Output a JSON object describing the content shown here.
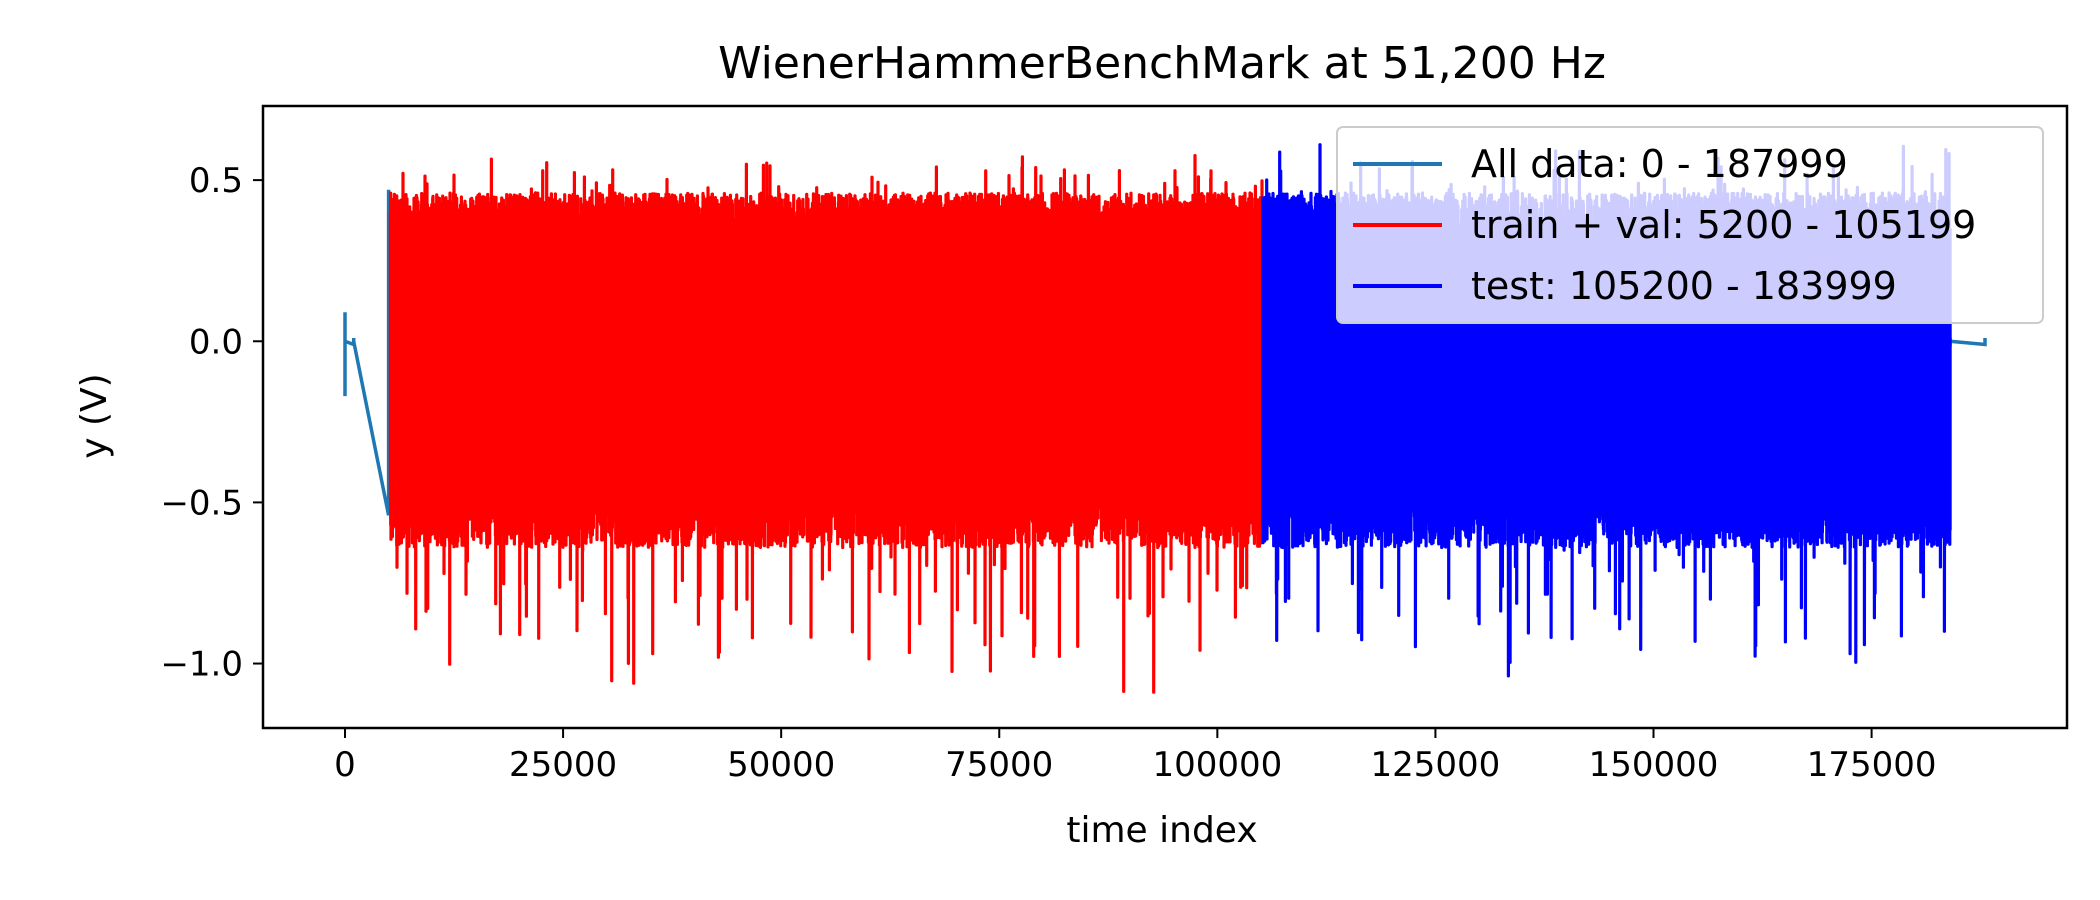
{
  "chart_data": {
    "type": "line",
    "title": "WienerHammerBenchMark at 51,200 Hz",
    "xlabel": "time index",
    "ylabel": "y (V)",
    "xlim": [
      -9400,
      197400
    ],
    "ylim": [
      -1.2,
      0.73
    ],
    "xticks": [
      0,
      25000,
      50000,
      75000,
      100000,
      125000,
      150000,
      175000
    ],
    "xtick_labels": [
      "0",
      "25000",
      "50000",
      "75000",
      "100000",
      "125000",
      "150000",
      "175000"
    ],
    "yticks": [
      0.5,
      0.0,
      -0.5,
      -1.0
    ],
    "ytick_labels": [
      "0.5",
      "0.0",
      "−0.5",
      "−1.0"
    ],
    "grid": false,
    "legend_position": "top-right",
    "series": [
      {
        "name": "All data: 0 - 187999",
        "color": "#1f77b4",
        "x_range": [
          0,
          187999
        ],
        "envelope": [
          {
            "x": 0,
            "min": -0.17,
            "max": 0.09
          },
          {
            "x": 1000,
            "min": -0.01,
            "max": 0.01
          },
          {
            "x": 5000,
            "min": -0.54,
            "max": 0.47
          },
          {
            "x": 183999,
            "min": -0.01,
            "max": 0.01
          },
          {
            "x": 187999,
            "min": -0.01,
            "max": 0.01
          }
        ]
      },
      {
        "name": "train + val: 5200 - 105199",
        "color": "#ff0000",
        "x_range": [
          5200,
          105199
        ],
        "y_min": -1.12,
        "y_max": 0.6
      },
      {
        "name": "test: 105200 - 183999",
        "color": "#0000ff",
        "x_range": [
          105200,
          183999
        ],
        "y_min": -1.09,
        "y_max": 0.64
      }
    ]
  }
}
